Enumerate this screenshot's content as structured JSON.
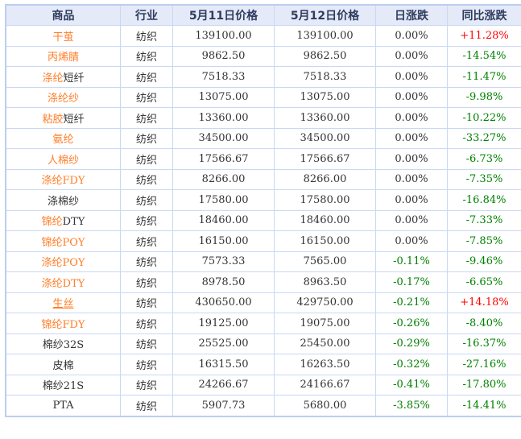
{
  "table": {
    "columns": [
      "商品",
      "行业",
      "5月11日价格",
      "5月12日价格",
      "日涨跌",
      "同比涨跌"
    ],
    "rows": [
      {
        "product": [
          {
            "t": "干茧",
            "link": true
          }
        ],
        "industry": "纺织",
        "price_0511": "139100.00",
        "price_0512": "139100.00",
        "daily_change": "0.00%",
        "daily_dir": "flat",
        "yoy_change": "+11.28%",
        "yoy_dir": "up"
      },
      {
        "product": [
          {
            "t": "丙烯腈",
            "link": true
          }
        ],
        "industry": "纺织",
        "price_0511": "9862.50",
        "price_0512": "9862.50",
        "daily_change": "0.00%",
        "daily_dir": "flat",
        "yoy_change": "-14.54%",
        "yoy_dir": "down"
      },
      {
        "product": [
          {
            "t": "涤纶",
            "link": true
          },
          {
            "t": "短纤",
            "link": false
          }
        ],
        "industry": "纺织",
        "price_0511": "7518.33",
        "price_0512": "7518.33",
        "daily_change": "0.00%",
        "daily_dir": "flat",
        "yoy_change": "-11.47%",
        "yoy_dir": "down"
      },
      {
        "product": [
          {
            "t": "涤纶纱",
            "link": true
          }
        ],
        "industry": "纺织",
        "price_0511": "13075.00",
        "price_0512": "13075.00",
        "daily_change": "0.00%",
        "daily_dir": "flat",
        "yoy_change": "-9.98%",
        "yoy_dir": "down"
      },
      {
        "product": [
          {
            "t": "粘胶",
            "link": true
          },
          {
            "t": "短纤",
            "link": false
          }
        ],
        "industry": "纺织",
        "price_0511": "13360.00",
        "price_0512": "13360.00",
        "daily_change": "0.00%",
        "daily_dir": "flat",
        "yoy_change": "-10.22%",
        "yoy_dir": "down"
      },
      {
        "product": [
          {
            "t": "氨纶",
            "link": true
          }
        ],
        "industry": "纺织",
        "price_0511": "34500.00",
        "price_0512": "34500.00",
        "daily_change": "0.00%",
        "daily_dir": "flat",
        "yoy_change": "-33.27%",
        "yoy_dir": "down"
      },
      {
        "product": [
          {
            "t": "人棉纱",
            "link": true
          }
        ],
        "industry": "纺织",
        "price_0511": "17566.67",
        "price_0512": "17566.67",
        "daily_change": "0.00%",
        "daily_dir": "flat",
        "yoy_change": "-6.73%",
        "yoy_dir": "down"
      },
      {
        "product": [
          {
            "t": "涤纶FDY",
            "link": true
          }
        ],
        "industry": "纺织",
        "price_0511": "8266.00",
        "price_0512": "8266.00",
        "daily_change": "0.00%",
        "daily_dir": "flat",
        "yoy_change": "-7.35%",
        "yoy_dir": "down"
      },
      {
        "product": [
          {
            "t": "涤棉纱",
            "link": false
          }
        ],
        "industry": "纺织",
        "price_0511": "17580.00",
        "price_0512": "17580.00",
        "daily_change": "0.00%",
        "daily_dir": "flat",
        "yoy_change": "-16.84%",
        "yoy_dir": "down"
      },
      {
        "product": [
          {
            "t": "锦纶",
            "link": true
          },
          {
            "t": "DTY",
            "link": false
          }
        ],
        "industry": "纺织",
        "price_0511": "18460.00",
        "price_0512": "18460.00",
        "daily_change": "0.00%",
        "daily_dir": "flat",
        "yoy_change": "-7.33%",
        "yoy_dir": "down"
      },
      {
        "product": [
          {
            "t": "锦纶POY",
            "link": true
          }
        ],
        "industry": "纺织",
        "price_0511": "16150.00",
        "price_0512": "16150.00",
        "daily_change": "0.00%",
        "daily_dir": "flat",
        "yoy_change": "-7.85%",
        "yoy_dir": "down"
      },
      {
        "product": [
          {
            "t": "涤纶POY",
            "link": true
          }
        ],
        "industry": "纺织",
        "price_0511": "7573.33",
        "price_0512": "7565.00",
        "daily_change": "-0.11%",
        "daily_dir": "down",
        "yoy_change": "-9.46%",
        "yoy_dir": "down"
      },
      {
        "product": [
          {
            "t": "涤纶DTY",
            "link": true
          }
        ],
        "industry": "纺织",
        "price_0511": "8978.50",
        "price_0512": "8963.50",
        "daily_change": "-0.17%",
        "daily_dir": "down",
        "yoy_change": "-6.65%",
        "yoy_dir": "down"
      },
      {
        "product": [
          {
            "t": "生丝",
            "link": true,
            "underline": true
          }
        ],
        "industry": "纺织",
        "price_0511": "430650.00",
        "price_0512": "429750.00",
        "daily_change": "-0.21%",
        "daily_dir": "down",
        "yoy_change": "+14.18%",
        "yoy_dir": "up"
      },
      {
        "product": [
          {
            "t": "锦纶FDY",
            "link": true
          }
        ],
        "industry": "纺织",
        "price_0511": "19125.00",
        "price_0512": "19075.00",
        "daily_change": "-0.26%",
        "daily_dir": "down",
        "yoy_change": "-8.40%",
        "yoy_dir": "down"
      },
      {
        "product": [
          {
            "t": "棉纱32S",
            "link": false
          }
        ],
        "industry": "纺织",
        "price_0511": "25525.00",
        "price_0512": "25450.00",
        "daily_change": "-0.29%",
        "daily_dir": "down",
        "yoy_change": "-16.37%",
        "yoy_dir": "down"
      },
      {
        "product": [
          {
            "t": "皮棉",
            "link": false
          }
        ],
        "industry": "纺织",
        "price_0511": "16315.50",
        "price_0512": "16263.50",
        "daily_change": "-0.32%",
        "daily_dir": "down",
        "yoy_change": "-27.16%",
        "yoy_dir": "down"
      },
      {
        "product": [
          {
            "t": "棉纱21S",
            "link": false
          }
        ],
        "industry": "纺织",
        "price_0511": "24266.67",
        "price_0512": "24166.67",
        "daily_change": "-0.41%",
        "daily_dir": "down",
        "yoy_change": "-17.80%",
        "yoy_dir": "down"
      },
      {
        "product": [
          {
            "t": "PTA",
            "link": false
          }
        ],
        "industry": "纺织",
        "price_0511": "5907.73",
        "price_0512": "5680.00",
        "daily_change": "-3.85%",
        "daily_dir": "down",
        "yoy_change": "-14.41%",
        "yoy_dir": "down"
      }
    ]
  },
  "colors": {
    "link_orange": "#ff7e28",
    "up_red": "#ff0000",
    "down_green": "#008000",
    "header_bg": "#e4eaf8",
    "header_text": "#2e3c5e",
    "body_text": "#333333",
    "border": "#c9d8f3",
    "outer_border": "#bccdf0"
  }
}
